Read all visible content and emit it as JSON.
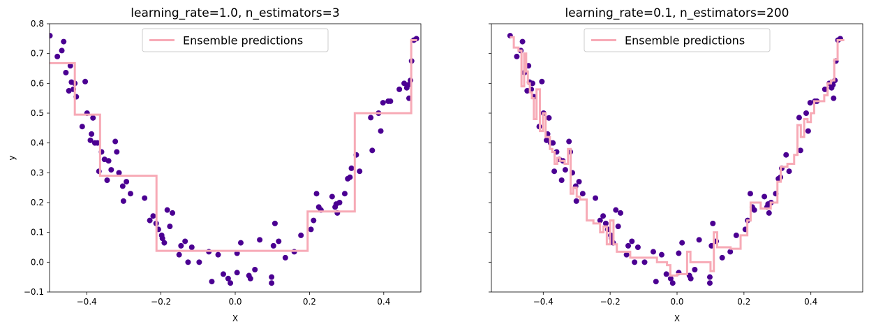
{
  "chart_data": [
    {
      "type": "scatter",
      "title": "learning_rate=1.0, n_estimators=3",
      "xlabel": "X",
      "ylabel": "y",
      "xlim": [
        -0.5,
        0.5
      ],
      "ylim": [
        -0.1,
        0.8
      ],
      "xticks": [
        -0.4,
        -0.2,
        0.0,
        0.2,
        0.4
      ],
      "xtick_labels": [
        "−0.4",
        "−0.2",
        "0.0",
        "0.2",
        "0.4"
      ],
      "yticks": [
        -0.1,
        0.0,
        0.1,
        0.2,
        0.3,
        0.4,
        0.5,
        0.6,
        0.7,
        0.8
      ],
      "ytick_labels": [
        "−0.1",
        "0.0",
        "0.1",
        "0.2",
        "0.3",
        "0.4",
        "0.5",
        "0.6",
        "0.7",
        "0.8"
      ],
      "show_ytick_labels": true,
      "grid": false,
      "legend": {
        "placement": "upper-center",
        "entries": [
          "Ensemble predictions"
        ]
      },
      "colors": {
        "points": "#4b0092",
        "line": "#f7aab6"
      },
      "points": {
        "x": [
          -0.499,
          -0.479,
          -0.467,
          -0.462,
          -0.456,
          -0.448,
          -0.444,
          -0.441,
          -0.436,
          -0.432,
          -0.428,
          -0.412,
          -0.404,
          -0.399,
          -0.39,
          -0.387,
          -0.383,
          -0.378,
          -0.371,
          -0.367,
          -0.36,
          -0.352,
          -0.345,
          -0.341,
          -0.334,
          -0.323,
          -0.319,
          -0.313,
          -0.303,
          -0.301,
          -0.293,
          -0.282,
          -0.244,
          -0.23,
          -0.221,
          -0.213,
          -0.207,
          -0.198,
          -0.196,
          -0.191,
          -0.183,
          -0.176,
          -0.169,
          -0.151,
          -0.146,
          -0.135,
          -0.127,
          -0.117,
          -0.097,
          -0.071,
          -0.063,
          -0.046,
          -0.032,
          -0.019,
          -0.013,
          0.005,
          0.005,
          0.015,
          0.037,
          0.041,
          0.053,
          0.066,
          0.098,
          0.098,
          0.103,
          0.107,
          0.117,
          0.135,
          0.159,
          0.177,
          0.204,
          0.211,
          0.219,
          0.225,
          0.231,
          0.261,
          0.269,
          0.272,
          0.275,
          0.281,
          0.295,
          0.303,
          0.309,
          0.313,
          0.326,
          0.335,
          0.365,
          0.369,
          0.386,
          0.392,
          0.398,
          0.412,
          0.418,
          0.442,
          0.455,
          0.462,
          0.466,
          0.468,
          0.472,
          0.475,
          0.481,
          0.488
        ],
        "y": [
          0.76,
          0.69,
          0.71,
          0.74,
          0.636,
          0.575,
          0.659,
          0.604,
          0.58,
          0.6,
          0.555,
          0.455,
          0.606,
          0.5,
          0.409,
          0.43,
          0.484,
          0.4,
          0.4,
          0.305,
          0.37,
          0.345,
          0.275,
          0.34,
          0.31,
          0.405,
          0.37,
          0.3,
          0.255,
          0.205,
          0.27,
          0.23,
          0.215,
          0.14,
          0.155,
          0.13,
          0.11,
          0.09,
          0.08,
          0.065,
          0.175,
          0.12,
          0.165,
          0.025,
          0.055,
          0.07,
          0.0,
          0.05,
          0.0,
          0.035,
          -0.065,
          0.025,
          -0.04,
          -0.055,
          -0.07,
          0.03,
          -0.035,
          0.065,
          -0.045,
          -0.055,
          -0.025,
          0.075,
          -0.05,
          -0.07,
          0.055,
          0.13,
          0.07,
          0.015,
          0.035,
          0.09,
          0.11,
          0.14,
          0.23,
          0.185,
          0.175,
          0.22,
          0.185,
          0.195,
          0.165,
          0.2,
          0.23,
          0.28,
          0.285,
          0.315,
          0.36,
          0.305,
          0.485,
          0.375,
          0.5,
          0.44,
          0.535,
          0.54,
          0.54,
          0.58,
          0.6,
          0.585,
          0.595,
          0.55,
          0.61,
          0.675,
          0.745,
          0.75
        ]
      },
      "series": [
        {
          "name": "Ensemble predictions",
          "x": [
            -0.5,
            -0.432,
            -0.432,
            -0.364,
            -0.364,
            -0.212,
            -0.212,
            0.195,
            0.195,
            0.322,
            0.322,
            0.474,
            0.474,
            0.49
          ],
          "y": [
            0.668,
            0.668,
            0.495,
            0.495,
            0.29,
            0.29,
            0.038,
            0.038,
            0.17,
            0.17,
            0.5,
            0.5,
            0.745,
            0.745
          ]
        }
      ]
    },
    {
      "type": "scatter",
      "title": "learning_rate=0.1, n_estimators=200",
      "xlabel": "X",
      "ylabel": "",
      "xlim": [
        -0.555,
        0.555
      ],
      "ylim": [
        -0.1,
        0.8
      ],
      "xticks": [
        -0.4,
        -0.2,
        0.0,
        0.2,
        0.4
      ],
      "xtick_labels": [
        "−0.4",
        "−0.2",
        "0.0",
        "0.2",
        "0.4"
      ],
      "yticks": [
        -0.1,
        0.0,
        0.1,
        0.2,
        0.3,
        0.4,
        0.5,
        0.6,
        0.7,
        0.8
      ],
      "ytick_labels": [],
      "show_ytick_labels": false,
      "grid": false,
      "legend": {
        "placement": "upper-center",
        "entries": [
          "Ensemble predictions"
        ]
      },
      "colors": {
        "points": "#4b0092",
        "line": "#f7aab6"
      },
      "points": {
        "x": [
          -0.499,
          -0.479,
          -0.467,
          -0.462,
          -0.456,
          -0.448,
          -0.444,
          -0.441,
          -0.436,
          -0.432,
          -0.428,
          -0.412,
          -0.404,
          -0.399,
          -0.39,
          -0.387,
          -0.383,
          -0.378,
          -0.371,
          -0.367,
          -0.36,
          -0.352,
          -0.345,
          -0.341,
          -0.334,
          -0.323,
          -0.319,
          -0.313,
          -0.303,
          -0.301,
          -0.293,
          -0.282,
          -0.244,
          -0.23,
          -0.221,
          -0.213,
          -0.207,
          -0.198,
          -0.196,
          -0.191,
          -0.183,
          -0.176,
          -0.169,
          -0.151,
          -0.146,
          -0.135,
          -0.127,
          -0.117,
          -0.097,
          -0.071,
          -0.063,
          -0.046,
          -0.032,
          -0.019,
          -0.013,
          0.005,
          0.005,
          0.015,
          0.037,
          0.041,
          0.053,
          0.066,
          0.098,
          0.098,
          0.103,
          0.107,
          0.117,
          0.135,
          0.159,
          0.177,
          0.204,
          0.211,
          0.219,
          0.225,
          0.231,
          0.261,
          0.269,
          0.272,
          0.275,
          0.281,
          0.295,
          0.303,
          0.309,
          0.313,
          0.326,
          0.335,
          0.365,
          0.369,
          0.386,
          0.392,
          0.398,
          0.412,
          0.418,
          0.442,
          0.455,
          0.462,
          0.466,
          0.468,
          0.472,
          0.475,
          0.481,
          0.488
        ],
        "y": [
          0.76,
          0.69,
          0.71,
          0.74,
          0.636,
          0.575,
          0.659,
          0.604,
          0.58,
          0.6,
          0.555,
          0.455,
          0.606,
          0.5,
          0.409,
          0.43,
          0.484,
          0.4,
          0.4,
          0.305,
          0.37,
          0.345,
          0.275,
          0.34,
          0.31,
          0.405,
          0.37,
          0.3,
          0.255,
          0.205,
          0.27,
          0.23,
          0.215,
          0.14,
          0.155,
          0.13,
          0.11,
          0.09,
          0.08,
          0.065,
          0.175,
          0.12,
          0.165,
          0.025,
          0.055,
          0.07,
          0.0,
          0.05,
          0.0,
          0.035,
          -0.065,
          0.025,
          -0.04,
          -0.055,
          -0.07,
          0.03,
          -0.035,
          0.065,
          -0.045,
          -0.055,
          -0.025,
          0.075,
          -0.05,
          -0.07,
          0.055,
          0.13,
          0.07,
          0.015,
          0.035,
          0.09,
          0.11,
          0.14,
          0.23,
          0.185,
          0.175,
          0.22,
          0.185,
          0.195,
          0.165,
          0.2,
          0.23,
          0.28,
          0.285,
          0.315,
          0.36,
          0.305,
          0.485,
          0.375,
          0.5,
          0.44,
          0.535,
          0.54,
          0.54,
          0.58,
          0.6,
          0.585,
          0.595,
          0.55,
          0.61,
          0.675,
          0.745,
          0.75
        ]
      },
      "series": [
        {
          "name": "Ensemble predictions",
          "x": [
            -0.5,
            -0.488,
            -0.488,
            -0.474,
            -0.474,
            -0.465,
            -0.465,
            -0.457,
            -0.457,
            -0.451,
            -0.451,
            -0.446,
            -0.446,
            -0.44,
            -0.44,
            -0.434,
            -0.434,
            -0.428,
            -0.428,
            -0.42,
            -0.42,
            -0.41,
            -0.41,
            -0.401,
            -0.401,
            -0.393,
            -0.393,
            -0.385,
            -0.385,
            -0.38,
            -0.38,
            -0.373,
            -0.373,
            -0.366,
            -0.366,
            -0.358,
            -0.358,
            -0.35,
            -0.35,
            -0.343,
            -0.343,
            -0.336,
            -0.336,
            -0.326,
            -0.326,
            -0.318,
            -0.318,
            -0.31,
            -0.31,
            -0.306,
            -0.306,
            -0.3,
            -0.3,
            -0.29,
            -0.29,
            -0.27,
            -0.27,
            -0.25,
            -0.25,
            -0.23,
            -0.23,
            -0.22,
            -0.22,
            -0.21,
            -0.21,
            -0.2,
            -0.2,
            -0.19,
            -0.19,
            -0.18,
            -0.18,
            -0.17,
            -0.17,
            -0.14,
            -0.14,
            -0.12,
            -0.12,
            -0.08,
            -0.08,
            -0.06,
            -0.06,
            -0.03,
            -0.03,
            -0.02,
            -0.02,
            0.0,
            0.0,
            0.03,
            0.03,
            0.04,
            0.04,
            0.05,
            0.05,
            0.1,
            0.1,
            0.11,
            0.11,
            0.12,
            0.12,
            0.14,
            0.14,
            0.16,
            0.16,
            0.19,
            0.19,
            0.21,
            0.21,
            0.22,
            0.22,
            0.25,
            0.25,
            0.28,
            0.28,
            0.3,
            0.3,
            0.31,
            0.31,
            0.33,
            0.33,
            0.35,
            0.35,
            0.36,
            0.36,
            0.37,
            0.37,
            0.38,
            0.38,
            0.39,
            0.39,
            0.4,
            0.4,
            0.41,
            0.41,
            0.42,
            0.42,
            0.44,
            0.44,
            0.45,
            0.45,
            0.46,
            0.46,
            0.47,
            0.47,
            0.48,
            0.48,
            0.5
          ],
          "y": [
            0.755,
            0.755,
            0.72,
            0.72,
            0.71,
            0.71,
            0.59,
            0.59,
            0.7,
            0.7,
            0.64,
            0.64,
            0.6,
            0.6,
            0.57,
            0.57,
            0.55,
            0.55,
            0.48,
            0.48,
            0.58,
            0.58,
            0.44,
            0.44,
            0.5,
            0.5,
            0.42,
            0.42,
            0.42,
            0.42,
            0.38,
            0.38,
            0.37,
            0.37,
            0.33,
            0.33,
            0.35,
            0.35,
            0.34,
            0.34,
            0.34,
            0.34,
            0.33,
            0.33,
            0.38,
            0.38,
            0.23,
            0.23,
            0.25,
            0.25,
            0.25,
            0.25,
            0.22,
            0.22,
            0.21,
            0.21,
            0.14,
            0.14,
            0.13,
            0.13,
            0.1,
            0.1,
            0.12,
            0.12,
            0.06,
            0.06,
            0.14,
            0.14,
            0.06,
            0.06,
            0.035,
            0.035,
            0.035,
            0.035,
            0.015,
            0.015,
            0.015,
            0.015,
            0.015,
            0.015,
            0.0,
            0.0,
            -0.01,
            -0.01,
            -0.045,
            -0.045,
            -0.04,
            -0.04,
            0.035,
            0.035,
            0.0,
            0.0,
            0.0,
            0.0,
            -0.03,
            -0.03,
            0.1,
            0.1,
            0.05,
            0.05,
            0.05,
            0.05,
            0.045,
            0.045,
            0.09,
            0.09,
            0.14,
            0.14,
            0.2,
            0.2,
            0.18,
            0.18,
            0.2,
            0.2,
            0.27,
            0.27,
            0.32,
            0.32,
            0.33,
            0.33,
            0.36,
            0.36,
            0.46,
            0.46,
            0.42,
            0.42,
            0.48,
            0.48,
            0.47,
            0.47,
            0.5,
            0.5,
            0.54,
            0.54,
            0.54,
            0.54,
            0.56,
            0.56,
            0.6,
            0.6,
            0.61,
            0.61,
            0.68,
            0.68,
            0.745,
            0.745
          ]
        }
      ]
    }
  ]
}
